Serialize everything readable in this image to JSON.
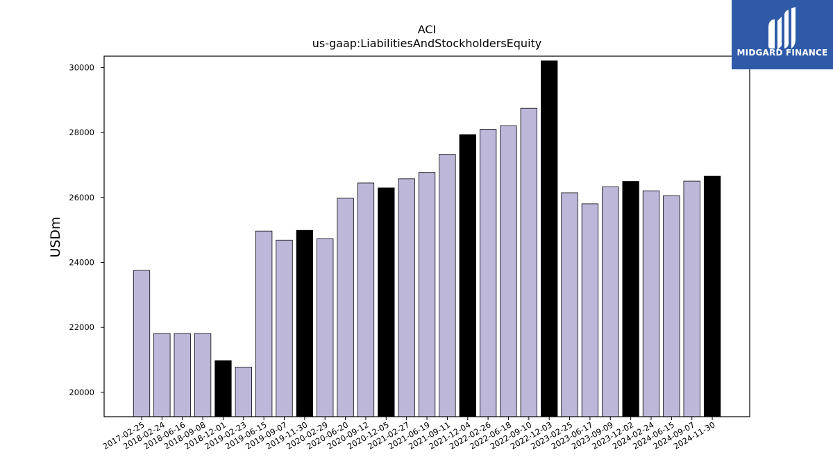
{
  "brand": {
    "name": "MIDGARD FINANCE",
    "bg_color": "#2e5aa8"
  },
  "chart_data": {
    "type": "bar",
    "title": "ACI",
    "subtitle": "us-gaap:LiabilitiesAndStockholdersEquity",
    "xlabel": "",
    "ylabel": "USDm",
    "ylim": [
      19250,
      30350
    ],
    "yticks": [
      20000,
      22000,
      24000,
      26000,
      28000,
      30000
    ],
    "grid": false,
    "colors": {
      "default": "#bdb8da",
      "highlight": "#000000"
    },
    "categories": [
      "2017-02-25",
      "2018-02-24",
      "2018-06-16",
      "2018-09-08",
      "2018-12-01",
      "2019-02-23",
      "2019-06-15",
      "2019-09-07",
      "2019-11-30",
      "2020-02-29",
      "2020-06-20",
      "2020-09-12",
      "2020-12-05",
      "2021-02-27",
      "2021-06-19",
      "2021-09-11",
      "2021-12-04",
      "2022-02-26",
      "2022-06-18",
      "2022-09-10",
      "2022-12-03",
      "2023-02-25",
      "2023-06-17",
      "2023-09-09",
      "2023-12-02",
      "2024-02-24",
      "2024-06-15",
      "2024-09-07",
      "2024-11-30"
    ],
    "values": [
      23755,
      21812,
      21812,
      21812,
      20977,
      20777,
      24966,
      24687,
      24987,
      24730,
      25975,
      26445,
      26295,
      26575,
      26770,
      27325,
      27935,
      28095,
      28205,
      28745,
      30205,
      26145,
      25805,
      26325,
      26495,
      26205,
      26055,
      26505,
      26655
    ],
    "highlight": [
      false,
      false,
      false,
      false,
      true,
      false,
      false,
      false,
      true,
      false,
      false,
      false,
      true,
      false,
      false,
      false,
      true,
      false,
      false,
      false,
      true,
      false,
      false,
      false,
      true,
      false,
      false,
      false,
      true
    ]
  }
}
